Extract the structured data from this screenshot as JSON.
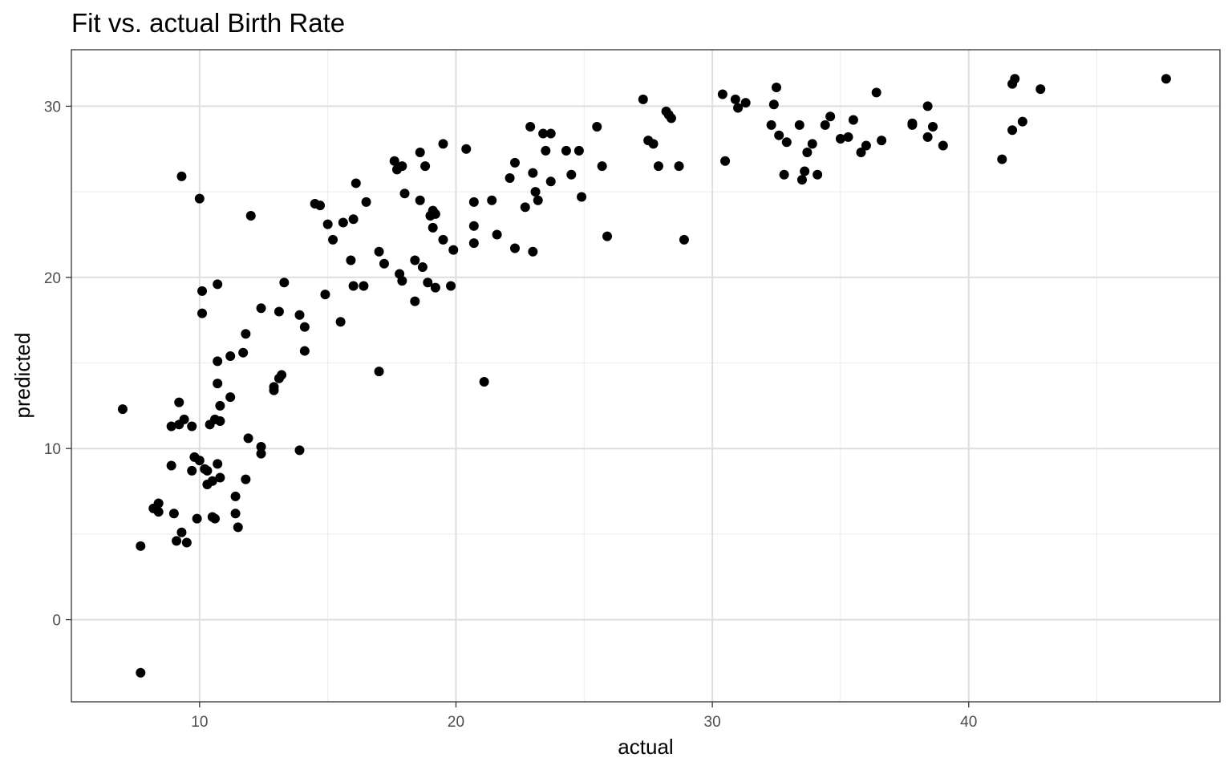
{
  "chart_data": {
    "type": "scatter",
    "title": "Fit vs. actual Birth Rate",
    "xlabel": "actual",
    "ylabel": "predicted",
    "xlim": [
      5,
      49.8
    ],
    "ylim": [
      -4.8,
      33.3
    ],
    "x_ticks": [
      10,
      20,
      30,
      40
    ],
    "y_ticks": [
      0,
      10,
      20,
      30
    ],
    "x_tick_labels": [
      "10",
      "20",
      "30",
      "40"
    ],
    "y_tick_labels": [
      "0",
      "10",
      "20",
      "30"
    ],
    "grid": true,
    "point_color": "#000000",
    "x": [
      7.0,
      7.7,
      7.7,
      8.2,
      8.4,
      8.4,
      8.9,
      8.9,
      9.0,
      9.1,
      9.2,
      9.2,
      9.3,
      9.3,
      9.4,
      9.5,
      9.7,
      9.7,
      9.8,
      9.9,
      10.0,
      10.0,
      10.1,
      10.1,
      10.2,
      10.3,
      10.3,
      10.4,
      10.5,
      10.5,
      10.6,
      10.6,
      10.7,
      10.7,
      10.7,
      10.7,
      10.8,
      10.8,
      10.8,
      11.2,
      11.2,
      11.4,
      11.4,
      11.5,
      11.7,
      11.8,
      11.8,
      11.9,
      12.0,
      12.4,
      12.4,
      12.4,
      12.9,
      12.9,
      13.1,
      13.1,
      13.2,
      13.3,
      13.9,
      13.9,
      14.1,
      14.1,
      14.5,
      14.7,
      14.9,
      15.0,
      15.2,
      15.5,
      15.6,
      15.9,
      16.0,
      16.0,
      16.1,
      16.4,
      16.5,
      17.0,
      17.0,
      17.2,
      17.6,
      17.7,
      17.8,
      17.9,
      17.9,
      18.0,
      18.4,
      18.4,
      18.6,
      18.6,
      18.7,
      18.8,
      18.9,
      19.0,
      19.1,
      19.1,
      19.2,
      19.2,
      19.5,
      19.5,
      19.8,
      19.9,
      20.4,
      20.7,
      20.7,
      20.7,
      21.1,
      21.4,
      21.6,
      22.1,
      22.3,
      22.3,
      22.7,
      22.9,
      23.0,
      23.0,
      23.1,
      23.2,
      23.4,
      23.5,
      23.7,
      23.7,
      24.3,
      24.5,
      24.8,
      24.9,
      25.5,
      25.7,
      25.9,
      27.3,
      27.5,
      27.7,
      27.9,
      28.2,
      28.3,
      28.4,
      28.7,
      28.9,
      30.4,
      30.5,
      30.9,
      31.0,
      31.3,
      32.3,
      32.4,
      32.5,
      32.6,
      32.8,
      32.9,
      33.4,
      33.5,
      33.6,
      33.7,
      33.9,
      34.1,
      34.4,
      34.6,
      35.0,
      35.3,
      35.5,
      35.8,
      36.0,
      36.4,
      36.6,
      37.8,
      37.8,
      38.4,
      38.4,
      38.6,
      39.0,
      41.3,
      41.7,
      41.7,
      41.8,
      42.1,
      42.8,
      47.7
    ],
    "y": [
      12.3,
      4.3,
      -3.1,
      6.5,
      6.3,
      6.8,
      9.0,
      11.3,
      6.2,
      4.6,
      11.4,
      12.7,
      5.1,
      25.9,
      11.7,
      4.5,
      8.7,
      11.3,
      9.5,
      5.9,
      24.6,
      9.3,
      17.9,
      19.2,
      8.8,
      7.9,
      8.7,
      11.4,
      8.1,
      6.0,
      11.7,
      5.9,
      19.6,
      15.1,
      13.8,
      9.1,
      8.3,
      12.5,
      11.6,
      15.4,
      13.0,
      7.2,
      6.2,
      5.4,
      15.6,
      16.7,
      8.2,
      10.6,
      23.6,
      18.2,
      10.1,
      9.7,
      13.6,
      13.4,
      18.0,
      14.1,
      14.3,
      19.7,
      17.8,
      9.9,
      17.1,
      15.7,
      24.3,
      24.2,
      19.0,
      23.1,
      22.2,
      17.4,
      23.2,
      21.0,
      19.5,
      23.4,
      25.5,
      19.5,
      24.4,
      21.5,
      14.5,
      20.8,
      26.8,
      26.3,
      20.2,
      26.5,
      19.8,
      24.9,
      21.0,
      18.6,
      27.3,
      24.5,
      20.6,
      26.5,
      19.7,
      23.6,
      22.9,
      23.9,
      19.4,
      23.7,
      22.2,
      27.8,
      19.5,
      21.6,
      27.5,
      24.4,
      23.0,
      22.0,
      13.9,
      24.5,
      22.5,
      25.8,
      26.7,
      21.7,
      24.1,
      28.8,
      21.5,
      26.1,
      25.0,
      24.5,
      28.4,
      27.4,
      28.4,
      25.6,
      27.4,
      26.0,
      27.4,
      24.7,
      28.8,
      26.5,
      22.4,
      30.4,
      28.0,
      27.8,
      26.5,
      29.7,
      29.5,
      29.3,
      26.5,
      22.2,
      30.7,
      26.8,
      30.4,
      29.9,
      30.2,
      28.9,
      30.1,
      31.1,
      28.3,
      26.0,
      27.9,
      28.9,
      25.7,
      26.2,
      27.3,
      27.8,
      26.0,
      28.9,
      29.4,
      28.1,
      28.2,
      29.2,
      27.3,
      27.7,
      30.8,
      28.0,
      29.0,
      28.9,
      30.0,
      28.2,
      28.8,
      27.7,
      26.9,
      28.6,
      31.3,
      31.6,
      29.1,
      31.0,
      31.6
    ]
  }
}
